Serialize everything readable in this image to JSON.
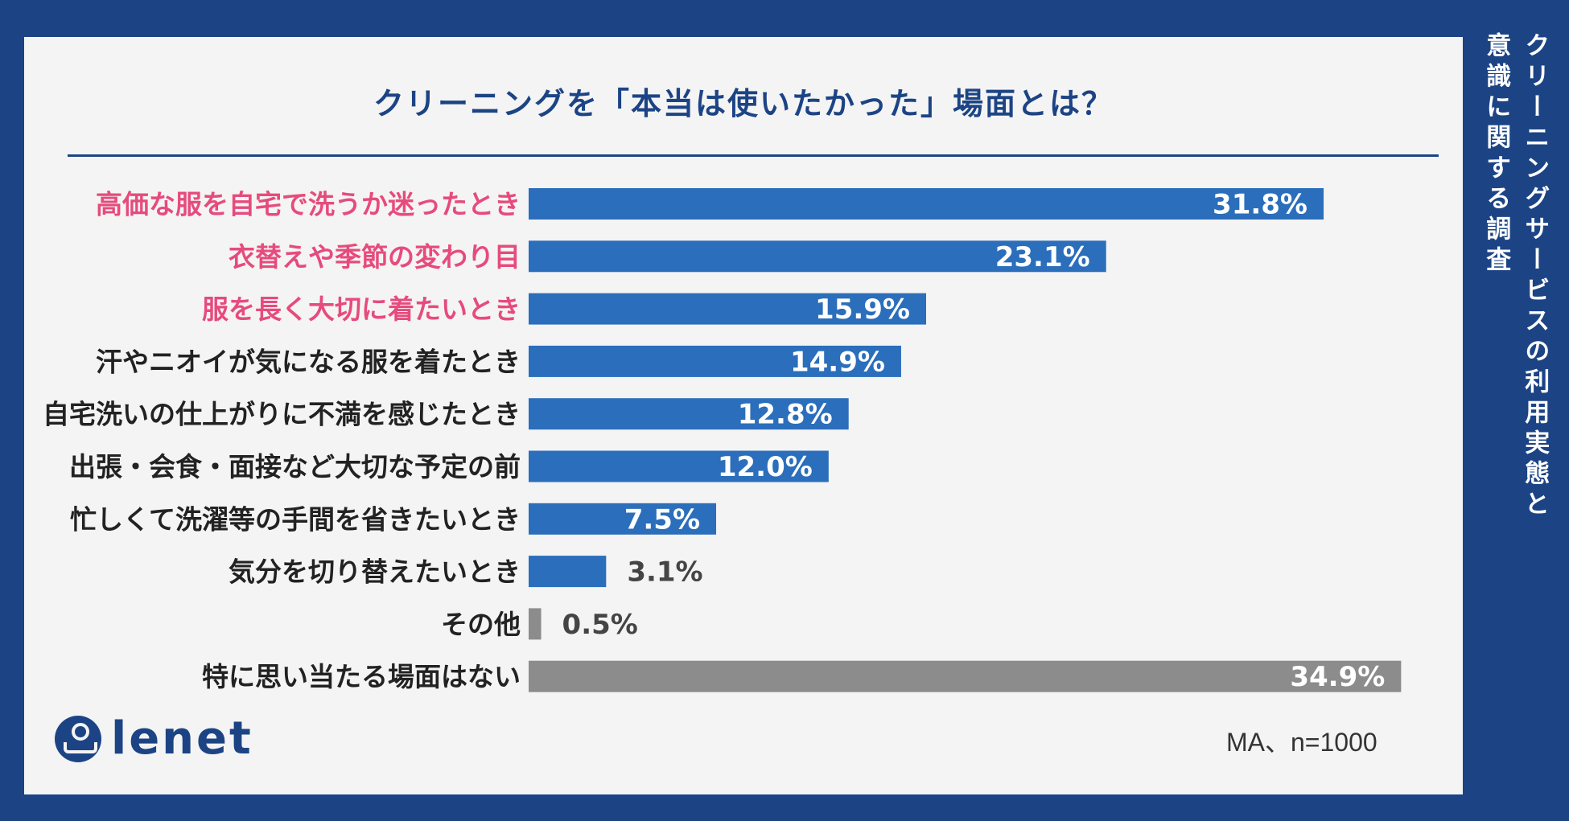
{
  "header": {
    "side_title_line1": "クリーニングサービスの利用実態と",
    "side_title_line2": "意識に関する調査"
  },
  "brand": {
    "logo_text": "lenet"
  },
  "footnote": "MA、n=1000",
  "colors": {
    "background": "#1c4485",
    "card": "#f4f4f4",
    "bar_blue": "#2b6ebb",
    "bar_gray": "#8c8c8c",
    "highlight_label": "#e64b7d",
    "label": "#222222",
    "title": "#1c4485"
  },
  "chart_data": {
    "type": "bar",
    "orientation": "horizontal",
    "title": "クリーニングを「本当は使いたかった」場面とは？",
    "unit": "%",
    "xlim": [
      0,
      35
    ],
    "grid": false,
    "categories": [
      "高価な服を自宅で洗うか迷ったとき",
      "衣替えや季節の変わり目",
      "服を長く大切に着たいとき",
      "汗やニオイが気になる服を着たとき",
      "自宅洗いの仕上がりに不満を感じたとき",
      "出張・会食・面接など大切な予定の前",
      "忙しくて洗濯等の手間を省きたいとき",
      "気分を切り替えたいとき",
      "その他",
      "特に思い当たる場面はない"
    ],
    "values": [
      31.8,
      23.1,
      15.9,
      14.9,
      12.8,
      12.0,
      7.5,
      3.1,
      0.5,
      34.9
    ],
    "value_labels": [
      "31.8%",
      "23.1%",
      "15.9%",
      "14.9%",
      "12.8%",
      "12.0%",
      "7.5%",
      "3.1%",
      "0.5%",
      "34.9%"
    ],
    "highlighted": [
      true,
      true,
      true,
      false,
      false,
      false,
      false,
      false,
      false,
      false
    ],
    "bar_color": [
      "blue",
      "blue",
      "blue",
      "blue",
      "blue",
      "blue",
      "blue",
      "blue",
      "gray",
      "gray"
    ]
  }
}
